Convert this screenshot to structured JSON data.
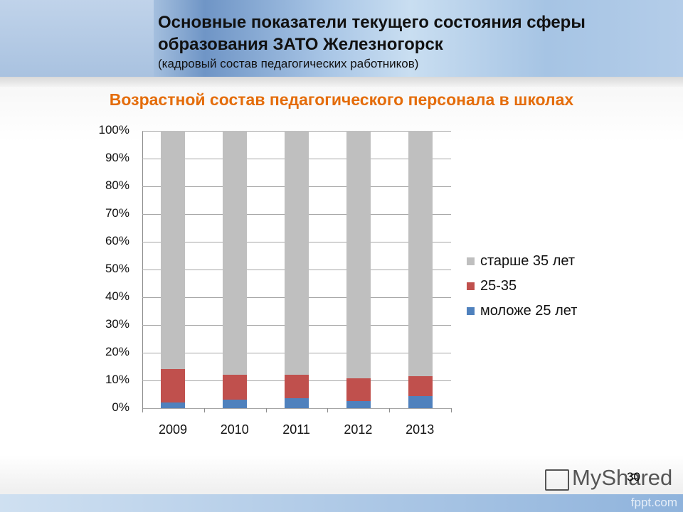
{
  "header": {
    "title_line1": "Основные показатели текущего состояния сферы",
    "title_line2": "образования ЗАТО Железногорск",
    "subtitle": "(кадровый  состав педагогических работников)"
  },
  "chart_data": {
    "type": "bar",
    "stacked": true,
    "percent": true,
    "title": "Возрастной состав педагогического персонала в школах",
    "xlabel": "",
    "ylabel": "",
    "ylim": [
      0,
      100
    ],
    "yticks": [
      "0%",
      "10%",
      "20%",
      "30%",
      "40%",
      "50%",
      "60%",
      "70%",
      "80%",
      "90%",
      "100%"
    ],
    "categories": [
      "2009",
      "2010",
      "2011",
      "2012",
      "2013"
    ],
    "series": [
      {
        "name": "моложе 25 лет",
        "color": "#4f81bd",
        "values": [
          2.0,
          3.0,
          3.5,
          2.5,
          4.4
        ]
      },
      {
        "name": "25-35",
        "color": "#c0504d",
        "values": [
          12.0,
          9.0,
          8.5,
          8.3,
          7.1
        ]
      },
      {
        "name": "старше 35 лет",
        "color": "#bfbfbf",
        "values": [
          86.0,
          88.0,
          88.0,
          89.2,
          88.5
        ]
      }
    ],
    "legend": {
      "position": "right",
      "order": [
        "старше 35 лет",
        "25-35",
        "моложе 25 лет"
      ]
    },
    "grid": true
  },
  "legend": {
    "items": [
      {
        "label": "старше 35 лет",
        "color": "#bfbfbf"
      },
      {
        "label": "25-35",
        "color": "#c0504d"
      },
      {
        "label": "моложе 25 лет",
        "color": "#4f81bd"
      }
    ]
  },
  "footer": {
    "watermark": "MyShared",
    "page_number": "30",
    "site": "fppt.com"
  }
}
